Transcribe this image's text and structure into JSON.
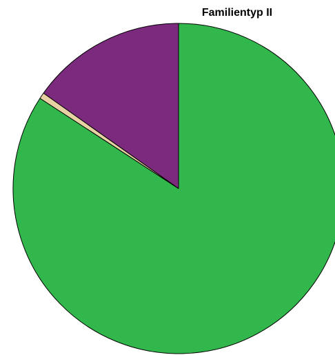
{
  "chart_data": {
    "type": "pie",
    "title": "Familientyp II",
    "slices": [
      {
        "value": 84.2,
        "color": "#31b74b"
      },
      {
        "value": 0.6,
        "color": "#e8d2a3"
      },
      {
        "value": 15.2,
        "color": "#7b2a7e"
      }
    ],
    "start_angle_deg": 0,
    "direction": "clockwise",
    "legend": "none"
  }
}
